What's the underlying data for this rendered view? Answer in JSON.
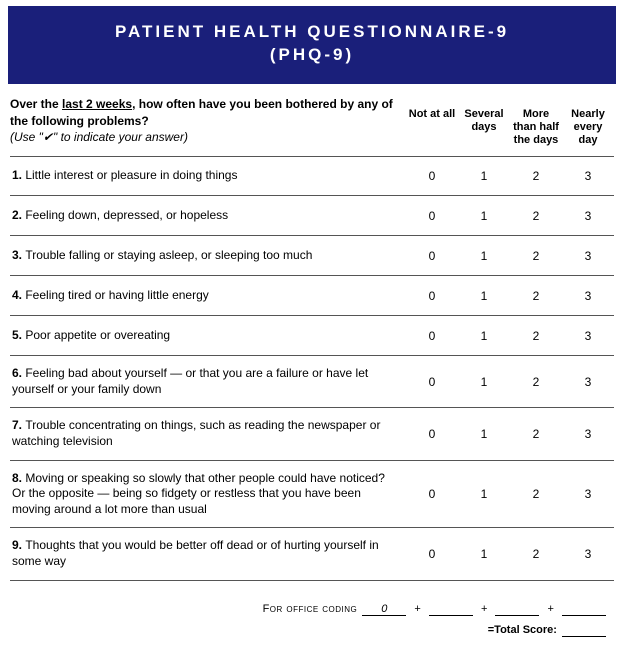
{
  "colors": {
    "title_bg": "#1a1f7a",
    "title_text": "#ffffff",
    "border": "#555555",
    "page_bg": "#ffffff"
  },
  "title": {
    "line1": "PATIENT HEALTH QUESTIONNAIRE-9",
    "line2": "(PHQ-9)"
  },
  "instructions": {
    "line1_a": "Over the ",
    "line1_b": "last 2 weeks",
    "line1_c": ", how often have you been bothered by any of the following problems?",
    "line2": "(Use \"✔\" to indicate your answer)"
  },
  "column_headers": [
    "Not at all",
    "Several days",
    "More than half the days",
    "Nearly every day"
  ],
  "score_values": [
    "0",
    "1",
    "2",
    "3"
  ],
  "questions": [
    {
      "num": "1.",
      "text": "Little interest or pleasure in doing things"
    },
    {
      "num": "2.",
      "text": "Feeling down, depressed, or hopeless"
    },
    {
      "num": "3.",
      "text": "Trouble falling or staying asleep, or sleeping too much"
    },
    {
      "num": "4.",
      "text": "Feeling tired or having little energy"
    },
    {
      "num": "5.",
      "text": "Poor appetite or overeating"
    },
    {
      "num": "6.",
      "text": "Feeling bad about yourself — or that you are a failure or have let yourself or your family down"
    },
    {
      "num": "7.",
      "text": "Trouble concentrating on things, such as reading the newspaper or watching television"
    },
    {
      "num": "8.",
      "text": "Moving or speaking so slowly that other people could have noticed?  Or the opposite — being so fidgety or restless that you have been moving around a lot more than usual"
    },
    {
      "num": "9.",
      "text": "Thoughts that you would be better off dead or of hurting yourself in some way"
    }
  ],
  "footer": {
    "office_label": "For office coding",
    "first_blank_value": "0",
    "plus": "+",
    "total_label": "=Total Score:"
  }
}
